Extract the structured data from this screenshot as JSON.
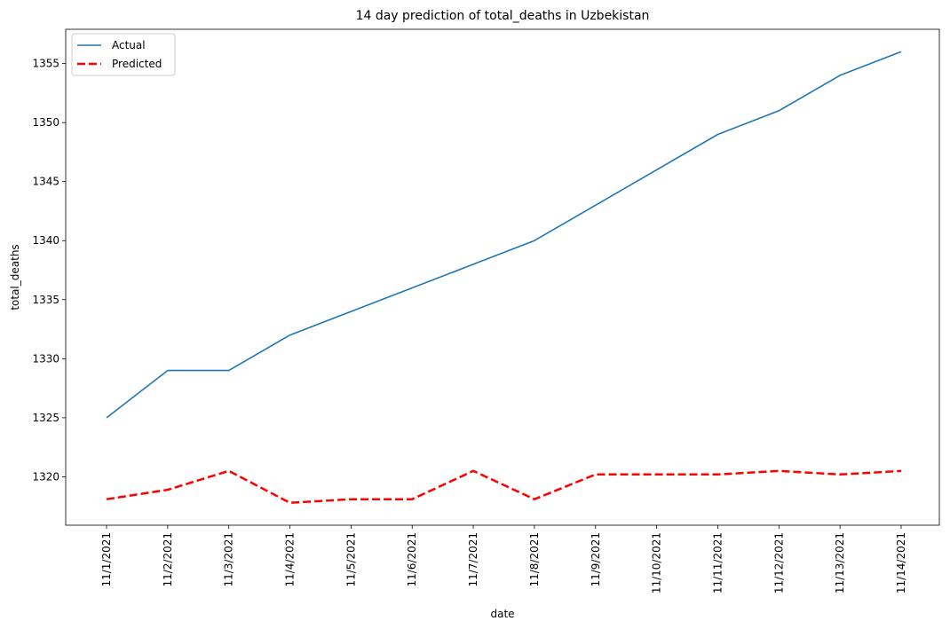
{
  "chart_data": {
    "type": "line",
    "title": "14 day prediction of total_deaths in Uzbekistan",
    "xlabel": "date",
    "ylabel": "total_deaths",
    "x": [
      "11/1/2021",
      "11/2/2021",
      "11/3/2021",
      "11/4/2021",
      "11/5/2021",
      "11/6/2021",
      "11/7/2021",
      "11/8/2021",
      "11/9/2021",
      "11/10/2021",
      "11/11/2021",
      "11/12/2021",
      "11/13/2021",
      "11/14/2021"
    ],
    "ylim": [
      1315.9,
      1357.9
    ],
    "yticks": [
      1320,
      1325,
      1330,
      1335,
      1340,
      1345,
      1350,
      1355
    ],
    "grid": false,
    "legend_position": "upper-left",
    "series": [
      {
        "name": "Actual",
        "color": "#1f77b4",
        "style": "solid",
        "values": [
          1325,
          1329,
          1329,
          1332,
          1334,
          1336,
          1338,
          1340,
          1343,
          1346,
          1349,
          1351,
          1354,
          1356
        ]
      },
      {
        "name": "Predicted",
        "color": "#ff0000",
        "style": "dashed",
        "values": [
          1318.1,
          1318.9,
          1320.5,
          1317.8,
          1318.1,
          1318.1,
          1320.5,
          1318.1,
          1320.2,
          1320.2,
          1320.2,
          1320.5,
          1320.2,
          1320.5
        ]
      }
    ]
  }
}
